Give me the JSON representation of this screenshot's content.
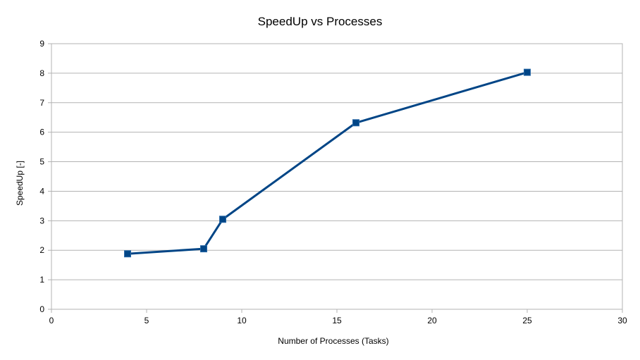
{
  "chart_data": {
    "type": "line",
    "title": "SpeedUp vs Processes",
    "xlabel": "Number of Processes (Tasks)",
    "ylabel": "SpeedUp [-]",
    "xlim": [
      0,
      30
    ],
    "ylim": [
      0,
      9
    ],
    "xticks": [
      0,
      5,
      10,
      15,
      20,
      25,
      30
    ],
    "yticks": [
      0,
      1,
      2,
      3,
      4,
      5,
      6,
      7,
      8,
      9
    ],
    "grid": {
      "horizontal": true,
      "vertical": false
    },
    "legend": "none",
    "series": [
      {
        "color": "#004586",
        "marker": "square",
        "x": [
          4,
          8,
          9,
          16,
          25
        ],
        "y": [
          1.88,
          2.05,
          3.05,
          6.32,
          8.03
        ]
      }
    ]
  }
}
